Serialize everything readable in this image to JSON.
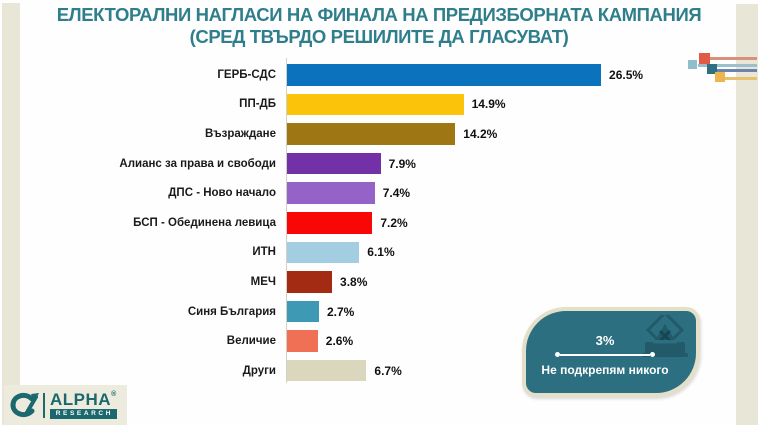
{
  "page": {
    "background": "#fefefe",
    "stripe_color": "#e8e6d6"
  },
  "title": {
    "line1": "ЕЛЕКТОРАЛНИ НАГЛАСИ НА ФИНАЛА НА ПРЕДИЗБОРНАТА КАМПАНИЯ",
    "line2": "(СРЕД ТВЪРДО РЕШИЛИТЕ ДА ГЛАСУВАТ)",
    "color": "#2e7e8c"
  },
  "chart_data": {
    "type": "bar",
    "orientation": "horizontal",
    "title": "ЕЛЕКТОРАЛНИ НАГЛАСИ НА ФИНАЛА НА ПРЕДИЗБОРНАТА КАМПАНИЯ (СРЕД ТВЪРДО РЕШИЛИТЕ ДА ГЛАСУВАТ)",
    "categories": [
      "ГЕРБ-СДС",
      "ПП-ДБ",
      "Възраждане",
      "Алианс за права и свободи",
      "ДПС - Ново начало",
      "БСП - Обединена левица",
      "ИТН",
      "МЕЧ",
      "Синя България",
      "Величие",
      "Други"
    ],
    "values": [
      26.5,
      14.9,
      14.2,
      7.9,
      7.4,
      7.2,
      6.1,
      3.8,
      2.7,
      2.6,
      6.7
    ],
    "value_labels": [
      "26.5%",
      "14.9%",
      "14.2%",
      "7.9%",
      "7.4%",
      "7.2%",
      "6.1%",
      "3.8%",
      "2.7%",
      "2.6%",
      "6.7%"
    ],
    "colors": [
      "#0b72be",
      "#fcc30b",
      "#9e7614",
      "#7331a7",
      "#9563c8",
      "#f90606",
      "#a3cee1",
      "#a32b13",
      "#3e9ab4",
      "#ef7055",
      "#dad7bc"
    ],
    "xlim": [
      0,
      28
    ],
    "grid": false,
    "legend": "none"
  },
  "badge": {
    "value": "3%",
    "label": "Не подкрепям никого",
    "bg": "#2b6f81",
    "border": "#e3dfc9",
    "icon": "ballot-box-icon"
  },
  "logo": {
    "brand": "ALPHA",
    "registered": "®",
    "sub": "RESEARCH",
    "color": "#1b686e"
  }
}
